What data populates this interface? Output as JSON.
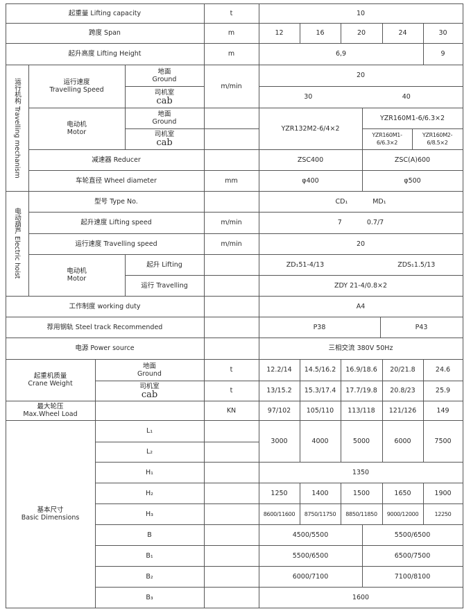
{
  "lifting_capacity": {
    "label": "起重量 Lifting capacity",
    "unit": "t",
    "value": "10"
  },
  "span": {
    "label": "跨度 Span",
    "unit": "m",
    "values": [
      "12",
      "16",
      "20",
      "24",
      "30"
    ]
  },
  "lifting_height": {
    "label": "起升高度 Lifting Height",
    "unit": "m",
    "values": [
      "6,9",
      "9"
    ]
  },
  "travelling_mechanism": {
    "group_label": "运行机构 Travelling mechanism",
    "speed": {
      "label_cn": "运行速度",
      "label_en": "Travelling Speed",
      "unit": "m/min",
      "ground_value": "20",
      "cab_values": [
        "30",
        "40"
      ]
    },
    "motor": {
      "label_cn": "电动机",
      "label_en": "Motor",
      "values": [
        "YZR132M2-6/4×2",
        "YZR160M1-6/6.3×2",
        "YZR160M1-6/6.3×2",
        "YZR160M2-6/8.5×2"
      ]
    },
    "reducer": {
      "label": "减速器 Reducer",
      "values": [
        "ZSC400",
        "ZSC(A)600"
      ]
    },
    "wheel": {
      "label": "车轮直径 Wheel diameter",
      "unit": "mm",
      "values": [
        "φ400",
        "φ500"
      ]
    }
  },
  "sub": {
    "ground_cn": "地面",
    "ground_en": "Ground",
    "cab_cn": "司机室",
    "cab_en": "cab"
  },
  "electric_hoist": {
    "group_label": "电动葫芦 Electric hoist",
    "type": {
      "label": "型号 Type No.",
      "values": [
        "CD₁",
        "MD₁"
      ]
    },
    "lifting_speed": {
      "label": "起升速度 Lifting speed",
      "unit": "m/min",
      "values": [
        "7",
        "0.7/7"
      ]
    },
    "travelling_speed": {
      "label": "运行速度 Travelling speed",
      "unit": "m/min",
      "value": "20"
    },
    "motor": {
      "label_cn": "电动机",
      "label_en": "Motor",
      "lifting_label": "起升 Lifting",
      "lifting_values": [
        "ZD₁51-4/13",
        "ZDS₁1.5/13"
      ],
      "travelling_label": "运行 Travelling",
      "travelling_value": "ZDY 21-4/0.8×2"
    }
  },
  "working_duty": {
    "label": "工作制度 working duty",
    "value": "A4"
  },
  "steel_track": {
    "label": "荐用钢轨 Steel track Recommended",
    "values": [
      "P38",
      "P43"
    ]
  },
  "power_source": {
    "label": "电源 Power source",
    "value": "三相交流 380V 50Hz"
  },
  "crane_weight": {
    "label_cn": "起重机质量",
    "label_en": "Crane Weight",
    "unit": "t",
    "ground_values": [
      "12.2/14",
      "14.5/16.2",
      "16.9/18.6",
      "20/21.8",
      "24.6"
    ],
    "cab_values": [
      "13/15.2",
      "15.3/17.4",
      "17.7/19.8",
      "20.8/23",
      "25.9"
    ]
  },
  "max_wheel_load": {
    "label_cn": "最大轮压",
    "label_en": "Max.Wheel Load",
    "unit": "KN",
    "values": [
      "97/102",
      "105/110",
      "113/118",
      "121/126",
      "149"
    ]
  },
  "basic_dimensions": {
    "label_cn": "基本尺寸",
    "label_en": "Basic Dimensions",
    "L_labels": [
      "L₁",
      "L₂"
    ],
    "L_values": [
      "3000",
      "4000",
      "5000",
      "6000",
      "7500"
    ],
    "H1_label": "H₁",
    "H1_value": "1350",
    "H2_label": "H₂",
    "H2_values": [
      "1250",
      "1400",
      "1500",
      "1650",
      "1900"
    ],
    "H3_label": "H₃",
    "H3_values": [
      "8600/11600",
      "8750/11750",
      "8850/11850",
      "9000/12000",
      "12250"
    ],
    "B_label": "B",
    "B_values": [
      "4500/5500",
      "5500/6500"
    ],
    "B1_label": "B₁",
    "B1_values": [
      "5500/6500",
      "6500/7500"
    ],
    "B2_label": "B₂",
    "B2_values": [
      "6000/7100",
      "7100/8100"
    ],
    "B3_label": "B₃",
    "B3_value": "1600"
  }
}
